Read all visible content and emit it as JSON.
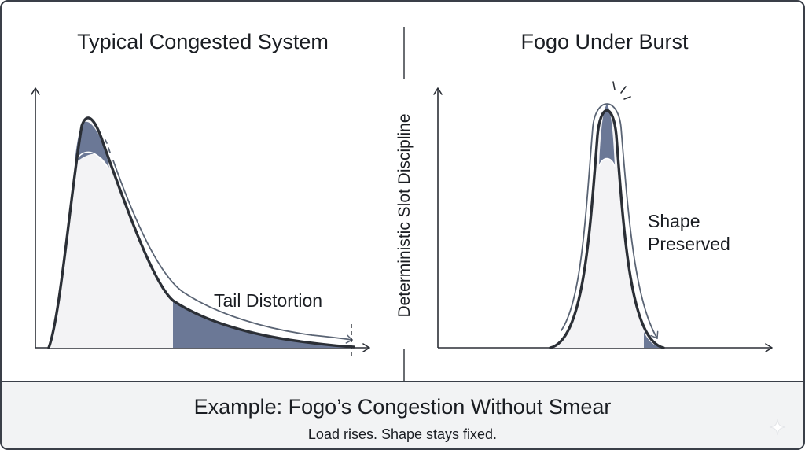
{
  "left_panel": {
    "title": "Typical Congested System",
    "annotation": "Tail Distortion"
  },
  "right_panel": {
    "title": "Fogo Under Burst",
    "annotation_line1": "Shape",
    "annotation_line2": "Preserved"
  },
  "divider": {
    "label": "Deterministic Slot Discipline"
  },
  "footer": {
    "title": "Example: Fogo’s Congestion Without Smear",
    "subtitle": "Load rises. Shape stays fixed."
  },
  "colors": {
    "outline": "#2b2f36",
    "fill_light": "#f3f3f5",
    "fill_distortion": "#6b7896",
    "arrow_stroke": "#5a6474",
    "footer_background": "#f2f3f4"
  },
  "icons": {
    "axis_arrow": "arrow-up/arrow-right",
    "corner_mark": "sparkle-icon"
  }
}
